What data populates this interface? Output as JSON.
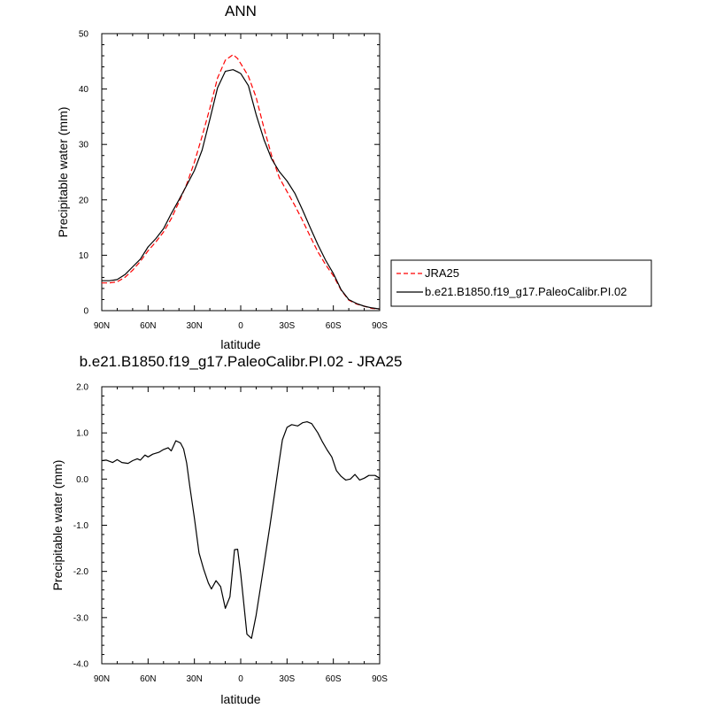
{
  "chart_data": [
    {
      "type": "line",
      "title": "ANN",
      "xlabel": "latitude",
      "ylabel": "Precipitable water (mm)",
      "xlim": [
        90,
        -90
      ],
      "ylim": [
        0,
        50
      ],
      "yticks": [
        0,
        10,
        20,
        30,
        40,
        50
      ],
      "ytick_labels": [
        "0",
        "10",
        "20",
        "30",
        "40",
        "50"
      ],
      "xticks": [
        90,
        60,
        30,
        0,
        -30,
        -60,
        -90
      ],
      "xtick_labels": [
        "90N",
        "60N",
        "30N",
        "0",
        "30S",
        "60S",
        "90S"
      ],
      "legend_position": "right",
      "series": [
        {
          "name": "JRA25",
          "color": "#ff0000",
          "style": "dashed",
          "x": [
            90,
            85,
            80,
            75,
            70,
            65,
            60,
            55,
            50,
            45,
            40,
            35,
            30,
            25,
            20,
            15,
            10,
            5,
            2,
            0,
            -5,
            -10,
            -15,
            -20,
            -25,
            -30,
            -35,
            -40,
            -45,
            -50,
            -55,
            -60,
            -65,
            -70,
            -75,
            -80,
            -85,
            -90
          ],
          "values": [
            5.0,
            5.0,
            5.2,
            6.0,
            7.3,
            8.9,
            10.8,
            12.4,
            14.2,
            16.6,
            19.6,
            22.8,
            26.8,
            31.5,
            36.5,
            42.0,
            45.2,
            46.2,
            45.5,
            44.6,
            42.3,
            38.5,
            33.0,
            28.0,
            24.0,
            21.5,
            19.0,
            16.3,
            13.4,
            10.6,
            8.3,
            6.3,
            3.7,
            1.9,
            1.2,
            0.8,
            0.4,
            0.3
          ]
        },
        {
          "name": "b.e21.B1850.f19_g17.PaleoCalibr.PI.02",
          "color": "#000000",
          "style": "solid",
          "x": [
            90,
            85,
            80,
            75,
            70,
            65,
            60,
            55,
            50,
            45,
            40,
            35,
            30,
            25,
            20,
            15,
            10,
            5,
            2,
            0,
            -5,
            -10,
            -15,
            -20,
            -25,
            -30,
            -35,
            -40,
            -45,
            -50,
            -55,
            -60,
            -65,
            -70,
            -75,
            -80,
            -85,
            -90
          ],
          "values": [
            5.4,
            5.4,
            5.6,
            6.5,
            7.9,
            9.3,
            11.5,
            13.0,
            14.8,
            17.5,
            20.0,
            22.6,
            25.3,
            29.0,
            34.5,
            40.2,
            43.2,
            43.5,
            43.1,
            42.8,
            40.6,
            35.4,
            30.9,
            27.4,
            25.1,
            23.4,
            21.2,
            18.2,
            15.0,
            11.9,
            9.1,
            6.7,
            3.8,
            2.0,
            1.3,
            0.8,
            0.5,
            0.3
          ]
        }
      ]
    },
    {
      "type": "line",
      "title": "b.e21.B1850.f19_g17.PaleoCalibr.PI.02 - JRA25",
      "xlabel": "latitude",
      "ylabel": "Precipitable water (mm)",
      "xlim": [
        90,
        -90
      ],
      "ylim": [
        -4.0,
        2.0
      ],
      "yticks": [
        -4.0,
        -3.0,
        -2.0,
        -1.0,
        0.0,
        1.0,
        2.0
      ],
      "ytick_labels": [
        "-4.0",
        "-3.0",
        "-2.0",
        "-1.0",
        "0.0",
        "1.0",
        "2.0"
      ],
      "xticks": [
        90,
        60,
        30,
        0,
        -30,
        -60,
        -90
      ],
      "xtick_labels": [
        "90N",
        "60N",
        "30N",
        "0",
        "30S",
        "60S",
        "90S"
      ],
      "series": [
        {
          "color": "#000000",
          "style": "solid",
          "x": [
            90,
            87,
            83,
            80,
            77,
            73,
            70,
            67,
            65,
            62,
            60,
            57,
            53,
            50,
            47,
            45,
            42,
            39,
            37,
            35,
            33,
            30,
            27,
            24,
            21,
            19,
            16,
            13,
            10,
            7,
            4,
            2,
            0,
            -2,
            -4,
            -7,
            -10,
            -13,
            -16,
            -19,
            -22,
            -25,
            -27,
            -30,
            -33,
            -37,
            -40,
            -43,
            -46,
            -48,
            -50,
            -53,
            -56,
            -59,
            -62,
            -65,
            -68,
            -71,
            -74,
            -77,
            -80,
            -83,
            -87,
            -90
          ],
          "values": [
            0.4,
            0.41,
            0.36,
            0.42,
            0.36,
            0.34,
            0.4,
            0.44,
            0.41,
            0.52,
            0.48,
            0.54,
            0.58,
            0.64,
            0.68,
            0.61,
            0.83,
            0.78,
            0.65,
            0.35,
            -0.15,
            -0.85,
            -1.6,
            -1.95,
            -2.25,
            -2.38,
            -2.2,
            -2.33,
            -2.8,
            -2.55,
            -1.53,
            -1.52,
            -2.05,
            -2.7,
            -3.36,
            -3.45,
            -2.95,
            -2.3,
            -1.65,
            -1.0,
            -0.3,
            0.4,
            0.85,
            1.12,
            1.18,
            1.15,
            1.22,
            1.24,
            1.2,
            1.1,
            1.0,
            0.8,
            0.63,
            0.48,
            0.18,
            0.06,
            -0.02,
            0.0,
            0.1,
            -0.02,
            0.02,
            0.08,
            0.08,
            0.02
          ]
        }
      ]
    }
  ]
}
